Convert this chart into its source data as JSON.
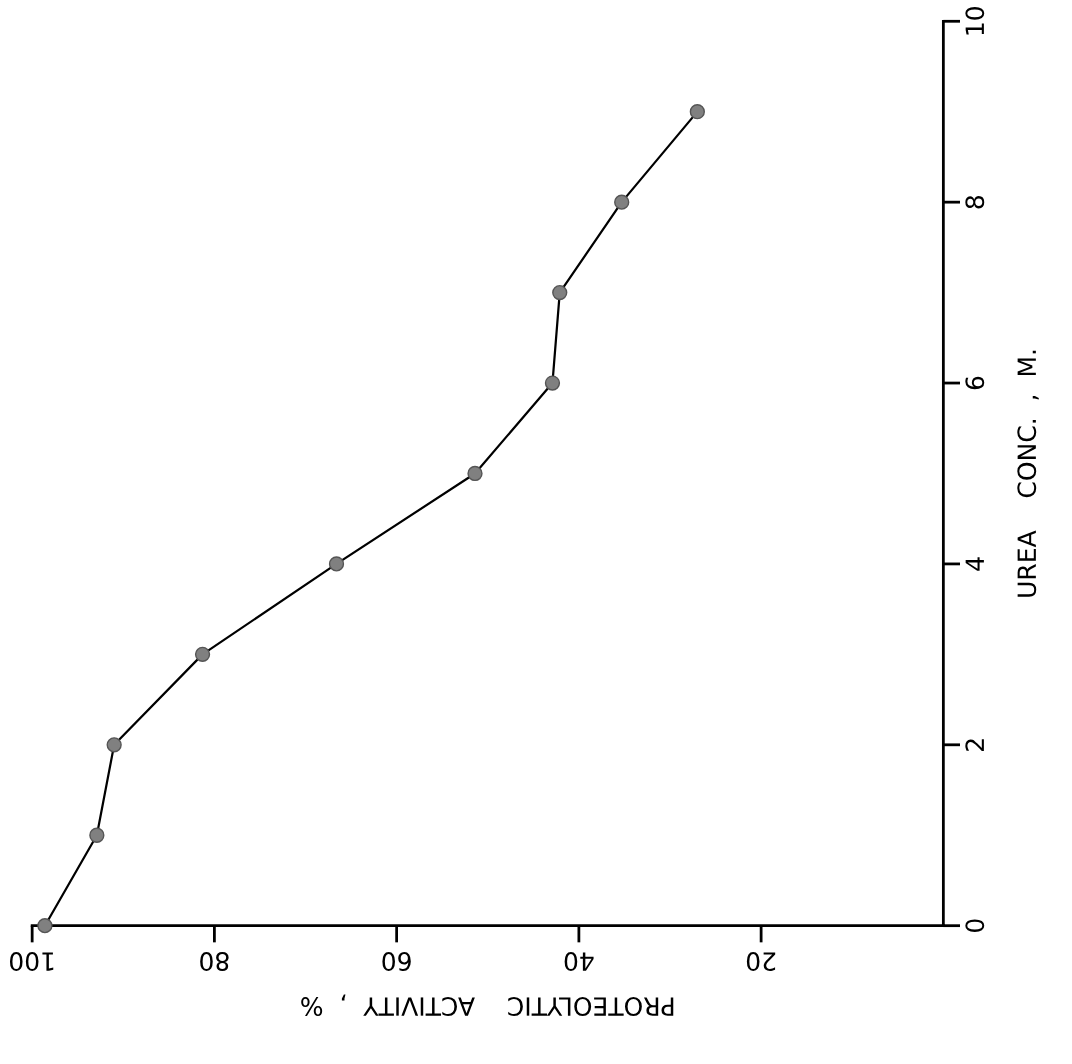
{
  "chart_data": {
    "type": "line",
    "xlabel": "PROTEOLYTIC    ACTIVITY  ,  %",
    "ylabel": "UREA    CONC.  ,  M.",
    "x": [
      98.6,
      92.9,
      91.0,
      81.3,
      66.6,
      51.4,
      42.9,
      42.1,
      35.3,
      27.0
    ],
    "series": [
      {
        "color": "#000000",
        "values": [
          0,
          1,
          2,
          3,
          4,
          5,
          6,
          7,
          8,
          9
        ]
      }
    ],
    "xlim": [
      100,
      0
    ],
    "xticks": [
      100,
      80,
      60,
      40,
      20
    ],
    "ylim": [
      0,
      10
    ],
    "yticks": [
      0,
      2,
      4,
      6,
      8,
      10
    ],
    "marker": "circle",
    "line_style": "solid",
    "grid": false,
    "legend": false
  }
}
